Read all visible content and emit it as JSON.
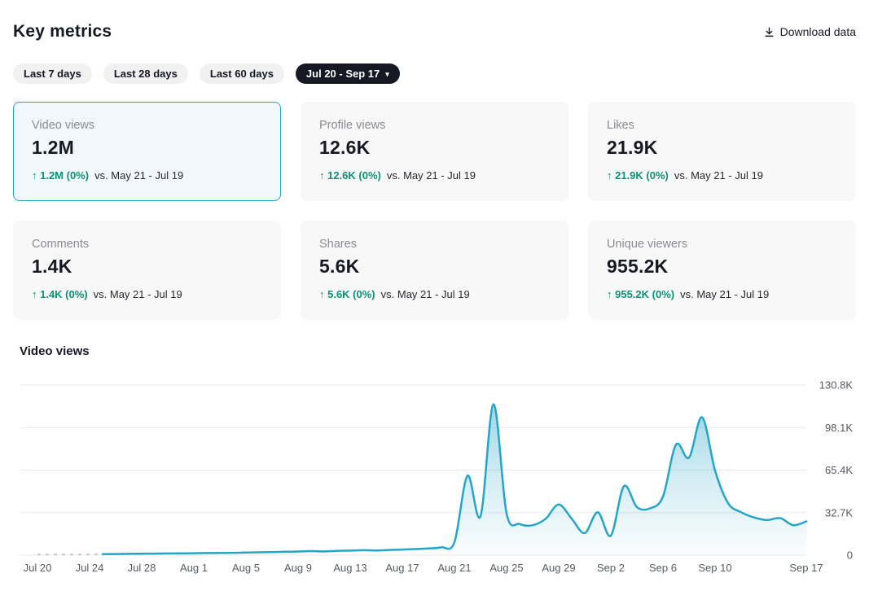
{
  "header": {
    "title": "Key metrics",
    "download": {
      "label": "Download data",
      "icon": "download-icon"
    }
  },
  "theme": {
    "accent": "#25a5c8",
    "positive": "#0d9077",
    "dark_pill": "#161823",
    "selected_card_border": "#2ba3c6",
    "selected_card_bg": "#f0f8fb",
    "card_bg": "#f8f8f8"
  },
  "filters": {
    "pills": [
      {
        "label": "Last 7 days",
        "selected": false
      },
      {
        "label": "Last 28 days",
        "selected": false
      },
      {
        "label": "Last 60 days",
        "selected": false
      },
      {
        "label": "Jul 20 - Sep 17",
        "selected": true,
        "caret": "▾"
      }
    ]
  },
  "cards": [
    {
      "label": "Video views",
      "value": "1.2M",
      "arrow": "↑",
      "delta": "1.2M (0%)",
      "vs": "vs. May 21 - Jul 19",
      "selected": true
    },
    {
      "label": "Profile views",
      "value": "12.6K",
      "arrow": "↑",
      "delta": "12.6K (0%)",
      "vs": "vs. May 21 - Jul 19",
      "selected": false
    },
    {
      "label": "Likes",
      "value": "21.9K",
      "arrow": "↑",
      "delta": "21.9K (0%)",
      "vs": "vs. May 21 - Jul 19",
      "selected": false
    },
    {
      "label": "Comments",
      "value": "1.4K",
      "arrow": "↑",
      "delta": "1.4K (0%)",
      "vs": "vs. May 21 - Jul 19",
      "selected": false
    },
    {
      "label": "Shares",
      "value": "5.6K",
      "arrow": "↑",
      "delta": "5.6K (0%)",
      "vs": "vs. May 21 - Jul 19",
      "selected": false
    },
    {
      "label": "Unique viewers",
      "value": "955.2K",
      "arrow": "↑",
      "delta": "955.2K (0%)",
      "vs": "vs. May 21 - Jul 19",
      "selected": false
    }
  ],
  "chart_section": {
    "title": "Video views"
  },
  "chart_data": {
    "type": "area",
    "title": "Video views",
    "x_unit": "day",
    "x_start": "Jul 20",
    "x_end": "Sep 17",
    "ylim": [
      0,
      130800
    ],
    "grid": true,
    "legend": "none",
    "dashed_no_data_range": [
      0,
      5
    ],
    "values": [
      600,
      600,
      600,
      700,
      700,
      800,
      900,
      1000,
      1100,
      1200,
      1300,
      1400,
      1500,
      1600,
      1700,
      1800,
      2000,
      2200,
      2400,
      2600,
      2800,
      3100,
      2900,
      3300,
      3500,
      3800,
      3600,
      4000,
      4300,
      4700,
      5200,
      6000,
      10000,
      61000,
      30000,
      116000,
      32000,
      24000,
      23000,
      28000,
      39000,
      28000,
      17000,
      33000,
      15000,
      53000,
      37000,
      36000,
      45000,
      85000,
      75000,
      106000,
      65000,
      40000,
      33000,
      29000,
      27000,
      28500,
      23000,
      26000
    ],
    "x_ticks": [
      {
        "label": "Jul 20",
        "day": 0
      },
      {
        "label": "Jul 24",
        "day": 4
      },
      {
        "label": "Jul 28",
        "day": 8
      },
      {
        "label": "Aug 1",
        "day": 12
      },
      {
        "label": "Aug 5",
        "day": 16
      },
      {
        "label": "Aug 9",
        "day": 20
      },
      {
        "label": "Aug 13",
        "day": 24
      },
      {
        "label": "Aug 17",
        "day": 28
      },
      {
        "label": "Aug 21",
        "day": 32
      },
      {
        "label": "Aug 25",
        "day": 36
      },
      {
        "label": "Aug 29",
        "day": 40
      },
      {
        "label": "Sep 2",
        "day": 44
      },
      {
        "label": "Sep 6",
        "day": 48
      },
      {
        "label": "Sep 10",
        "day": 52
      },
      {
        "label": "Sep 17",
        "day": 59
      }
    ],
    "y_ticks": [
      {
        "label": "0",
        "value": 0
      },
      {
        "label": "32.7K",
        "value": 32700
      },
      {
        "label": "65.4K",
        "value": 65400
      },
      {
        "label": "98.1K",
        "value": 98100
      },
      {
        "label": "130.8K",
        "value": 130800
      }
    ],
    "colors": {
      "line": "#25a5c8",
      "area_top": "rgba(38,164,199,0.5)",
      "area_mid": "rgba(38,164,199,0.2)",
      "area_bottom": "rgba(38,164,199,0.02)",
      "dashed": "#c7cacd",
      "grid": "#e8e9ea",
      "axis_text": "#565b61"
    }
  }
}
